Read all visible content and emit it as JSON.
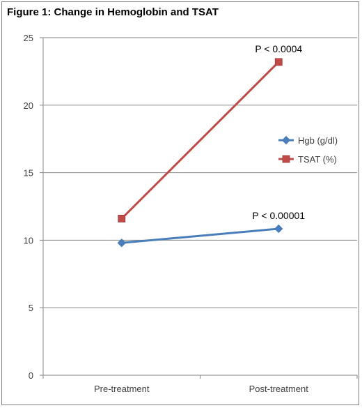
{
  "figure": {
    "title": "Figure 1:  Change in Hemoglobin and TSAT"
  },
  "chart_data": {
    "type": "line",
    "title": "Figure 1:  Change in Hemoglobin and TSAT",
    "xlabel": "",
    "ylabel": "",
    "categories": [
      "Pre-treatment",
      "Post-treatment"
    ],
    "ylim": [
      0,
      25
    ],
    "yticks": [
      0,
      5,
      10,
      15,
      20,
      25
    ],
    "grid": "horizontal",
    "legend_position": "right",
    "series": [
      {
        "name": "Hgb (g/dl)",
        "values": [
          9.8,
          10.85
        ],
        "color": "#4a7ebb",
        "marker": "diamond",
        "annotation": "P < 0.00001"
      },
      {
        "name": "TSAT (%)",
        "values": [
          11.6,
          23.2
        ],
        "color": "#be4b48",
        "marker": "square",
        "annotation": "P < 0.0004"
      }
    ]
  }
}
